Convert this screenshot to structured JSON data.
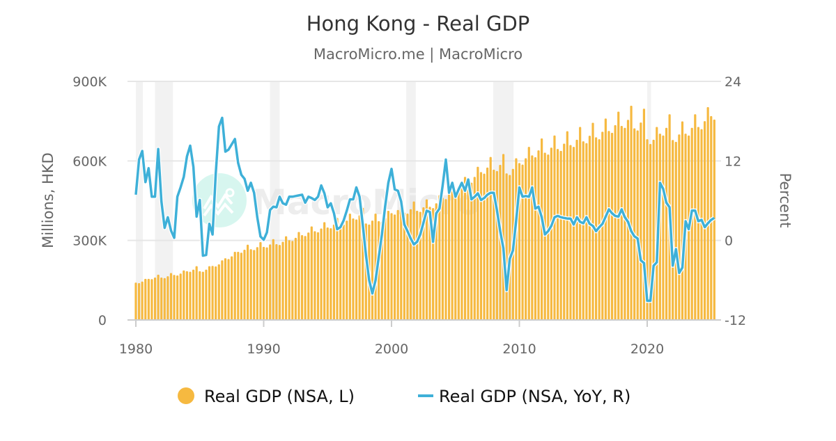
{
  "chart_data": {
    "type": "bar+line",
    "title": "Hong Kong - Real GDP",
    "subtitle": "MacroMicro.me | MacroMicro",
    "watermark": "MacroMicro",
    "ylabel_left": "Millions, HKD",
    "ylabel_right": "Percent",
    "ylim_left": [
      0,
      900000
    ],
    "ylim_right": [
      -12,
      24
    ],
    "yticks_left": [
      {
        "v": 0,
        "label": "0"
      },
      {
        "v": 300000,
        "label": "300K"
      },
      {
        "v": 600000,
        "label": "600K"
      },
      {
        "v": 900000,
        "label": "900K"
      }
    ],
    "yticks_right": [
      {
        "v": -12,
        "label": "-12"
      },
      {
        "v": 0,
        "label": "0"
      },
      {
        "v": 12,
        "label": "12"
      },
      {
        "v": 24,
        "label": "24"
      }
    ],
    "xticks": [
      {
        "v": 1980,
        "label": "1980"
      },
      {
        "v": 1990,
        "label": "1990"
      },
      {
        "v": 2000,
        "label": "2000"
      },
      {
        "v": 2010,
        "label": "2010"
      },
      {
        "v": 2020,
        "label": "2020"
      }
    ],
    "xlim": [
      1979.95,
      2025.8
    ],
    "frequency": "quarterly",
    "start": "1980Q1",
    "end": "2025Q2",
    "grid": true,
    "legend_placement": "bottom",
    "colors": {
      "bars": "#f6b940",
      "line": "#3eb0d8",
      "recession": "#f2f2f2",
      "grid": "#e6e6e6"
    },
    "recessions": [
      [
        1980.0,
        1980.55
      ],
      [
        1981.5,
        1982.9
      ],
      [
        1990.5,
        1991.25
      ],
      [
        2001.15,
        2001.9
      ],
      [
        2007.95,
        2009.55
      ],
      [
        2020.0,
        2020.3
      ]
    ],
    "series": [
      {
        "name": "Real GDP (NSA, L)",
        "axis": "left",
        "type": "bar",
        "values": [
          141000,
          139000,
          145000,
          155000,
          155000,
          154000,
          160000,
          171000,
          160000,
          158000,
          165000,
          177000,
          170000,
          168000,
          175000,
          187000,
          184000,
          182000,
          190000,
          203000,
          184000,
          182000,
          190000,
          203000,
          204000,
          202000,
          210000,
          225000,
          233000,
          230000,
          240000,
          257000,
          257000,
          254000,
          265000,
          284000,
          267000,
          264000,
          275000,
          294000,
          276000,
          274000,
          285000,
          305000,
          286000,
          283000,
          295000,
          316000,
          301000,
          298000,
          310000,
          332000,
          320000,
          317000,
          330000,
          353000,
          335000,
          331000,
          345000,
          369000,
          349000,
          346000,
          360000,
          385000,
          364000,
          360000,
          375000,
          401000,
          383000,
          379000,
          395000,
          423000,
          364000,
          360000,
          375000,
          401000,
          373000,
          370000,
          385000,
          412000,
          403000,
          398000,
          415000,
          444000,
          405000,
          401000,
          418000,
          447000,
          412000,
          408000,
          425000,
          455000,
          427000,
          422000,
          440000,
          471000,
          461000,
          456000,
          475000,
          508000,
          490000,
          485000,
          505000,
          540000,
          524000,
          518000,
          540000,
          578000,
          558000,
          552000,
          575000,
          615000,
          567000,
          562000,
          585000,
          626000,
          553000,
          547000,
          570000,
          610000,
          592000,
          586000,
          610000,
          653000,
          621000,
          614000,
          640000,
          685000,
          631000,
          624000,
          650000,
          696000,
          645000,
          638000,
          665000,
          712000,
          660000,
          653000,
          680000,
          728000,
          674000,
          667000,
          695000,
          744000,
          689000,
          682000,
          710000,
          760000,
          713000,
          706000,
          735000,
          786000,
          732000,
          725000,
          755000,
          808000,
          723000,
          715000,
          745000,
          797000,
          682000,
          664000,
          680000,
          728000,
          703000,
          696000,
          725000,
          776000,
          679000,
          672000,
          700000,
          749000,
          703000,
          696000,
          725000,
          776000,
          728000,
          720000,
          750000,
          803000,
          769000,
          756000
        ]
      },
      {
        "name": "Real GDP (NSA, YoY, R)",
        "axis": "right",
        "type": "line",
        "values": [
          6.9,
          12.2,
          13.5,
          8.8,
          10.9,
          6.6,
          6.6,
          13.8,
          5.9,
          1.9,
          3.5,
          1.5,
          0.4,
          6.6,
          8.0,
          9.6,
          12.7,
          14.3,
          11.1,
          3.6,
          6.1,
          -2.3,
          -2.2,
          2.5,
          0.9,
          10.1,
          17.2,
          18.5,
          13.4,
          13.7,
          14.5,
          15.3,
          11.7,
          9.9,
          9.3,
          7.5,
          8.7,
          7.2,
          3.5,
          0.6,
          0.1,
          1.2,
          4.6,
          5.1,
          5.0,
          6.6,
          5.6,
          5.4,
          6.6,
          6.6,
          6.7,
          6.8,
          6.9,
          5.7,
          6.6,
          6.4,
          6.1,
          6.6,
          8.3,
          7.1,
          5.0,
          5.6,
          4.1,
          1.7,
          2.0,
          3.0,
          4.5,
          6.2,
          6.2,
          8.0,
          6.6,
          2.4,
          -2.2,
          -6.0,
          -8.0,
          -6.0,
          -2.5,
          0.9,
          5.1,
          8.7,
          10.8,
          7.7,
          7.5,
          5.9,
          2.4,
          1.4,
          0.3,
          -0.6,
          -0.2,
          0.9,
          2.7,
          4.5,
          4.3,
          -0.2,
          4.1,
          4.8,
          8.3,
          12.2,
          7.2,
          8.7,
          6.6,
          7.7,
          8.7,
          7.5,
          9.2,
          6.2,
          6.6,
          7.1,
          6.1,
          6.4,
          6.9,
          7.2,
          7.2,
          4.5,
          1.4,
          -1.2,
          -7.5,
          -2.8,
          -1.5,
          3.0,
          8.0,
          6.6,
          6.7,
          6.6,
          8.0,
          4.8,
          5.1,
          3.5,
          0.9,
          1.4,
          2.2,
          3.5,
          3.7,
          3.5,
          3.4,
          3.3,
          3.3,
          2.4,
          3.5,
          2.8,
          2.6,
          3.5,
          2.5,
          2.2,
          1.4,
          2.0,
          2.5,
          3.6,
          4.7,
          4.1,
          3.7,
          3.6,
          4.7,
          3.5,
          2.8,
          1.4,
          0.6,
          0.3,
          -3.0,
          -3.4,
          -9.1,
          -9.1,
          -3.8,
          -3.3,
          8.7,
          7.8,
          5.7,
          5.0,
          -3.8,
          -1.3,
          -4.9,
          -4.1,
          2.9,
          1.7,
          4.5,
          4.5,
          2.9,
          3.1,
          2.0,
          2.6,
          3.1,
          3.4
        ]
      }
    ]
  },
  "legend": [
    {
      "label": "Real GDP (NSA, L)",
      "icon": "circle-marker"
    },
    {
      "label": "Real GDP (NSA, YoY, R)",
      "icon": "line-marker"
    }
  ]
}
